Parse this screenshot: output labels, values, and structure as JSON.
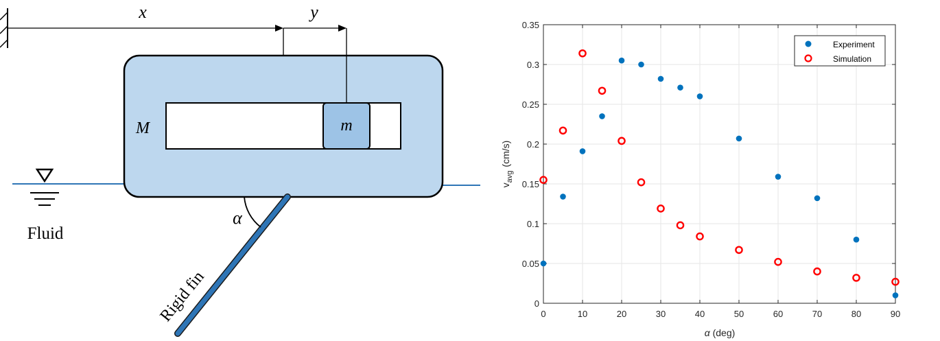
{
  "diagram": {
    "label_x": "x",
    "label_y": "y",
    "label_M": "M",
    "label_m": "m",
    "label_alpha": "α",
    "label_fluid": "Fluid",
    "label_fin": "Rigid fin",
    "colors": {
      "body_fill": "#bdd7ee",
      "mass_fill": "#9dc3e6",
      "water_line": "#2e75b6",
      "fin": "#2e75b6"
    }
  },
  "chart_data": {
    "type": "scatter",
    "xlabel_main": "α",
    "xlabel_unit": "(deg)",
    "ylabel_main": "v",
    "ylabel_sub": "avg",
    "ylabel_unit": "(cm/s)",
    "xlim": [
      0,
      90
    ],
    "ylim": [
      0,
      0.35
    ],
    "xticks": [
      0,
      10,
      20,
      30,
      40,
      50,
      60,
      70,
      80,
      90
    ],
    "xtick_labels": [
      "0",
      "10",
      "20",
      "30",
      "40",
      "50",
      "60",
      "70",
      "80",
      "90"
    ],
    "yticks": [
      0,
      0.05,
      0.1,
      0.15,
      0.2,
      0.25,
      0.3,
      0.35
    ],
    "ytick_labels": [
      "0",
      "0.05",
      "0.1",
      "0.15",
      "0.2",
      "0.25",
      "0.3",
      "0.35"
    ],
    "grid": true,
    "legend_position": "top-right",
    "series": [
      {
        "name": "Experiment",
        "marker": "filled-circle",
        "color": "#0072bd",
        "x": [
          0,
          5,
          10,
          15,
          20,
          25,
          30,
          35,
          40,
          50,
          60,
          70,
          80,
          90
        ],
        "y": [
          0.05,
          0.134,
          0.191,
          0.235,
          0.305,
          0.3,
          0.282,
          0.271,
          0.26,
          0.207,
          0.159,
          0.132,
          0.08,
          0.01
        ]
      },
      {
        "name": "Simulation",
        "marker": "open-circle",
        "color": "#ff0000",
        "x": [
          0,
          5,
          10,
          15,
          20,
          25,
          30,
          35,
          40,
          50,
          60,
          70,
          80,
          90
        ],
        "y": [
          0.155,
          0.217,
          0.314,
          0.267,
          0.204,
          0.152,
          0.119,
          0.098,
          0.084,
          0.067,
          0.052,
          0.04,
          0.032,
          0.027
        ]
      }
    ]
  }
}
